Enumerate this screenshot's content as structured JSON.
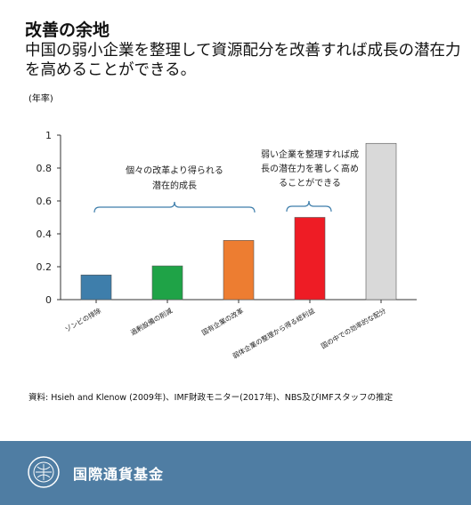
{
  "header": {
    "title": "改善の余地",
    "subtitle": "中国の弱小企業を整理して資源配分を改善すれば成長の潜在力を高めることができる。",
    "unit": "(年率)"
  },
  "annotations": {
    "group1": [
      "個々の改革より得られる",
      "潜在的成長"
    ],
    "group2": [
      "弱い企業を整理すれば成",
      "長の潜在力を著しく高め",
      "ることができる"
    ]
  },
  "source": "資料: Hsieh and Klenow (2009年)、IMF財政モニター(2017年)、NBS及びIMFスタッフの推定",
  "footer": {
    "org_name": "国際通貨基金"
  },
  "chart_data": {
    "type": "bar",
    "categories": [
      "ゾンビの排除",
      "過剰設備の削減",
      "国有企業の改革",
      "弱体企業の整理から得る総利益",
      "国の中での効率的な配分"
    ],
    "values": [
      0.15,
      0.205,
      0.36,
      0.5,
      0.95
    ],
    "colors": [
      "#3e7eab",
      "#1fa347",
      "#ed7d31",
      "#ee1c25",
      "#d9d9d9"
    ],
    "yticks": [
      "0",
      "0.2",
      "0.4",
      "0.6",
      "0.8",
      "1"
    ],
    "ylim": [
      0,
      1
    ],
    "grid": false,
    "xlabel": "",
    "ylabel": ""
  }
}
